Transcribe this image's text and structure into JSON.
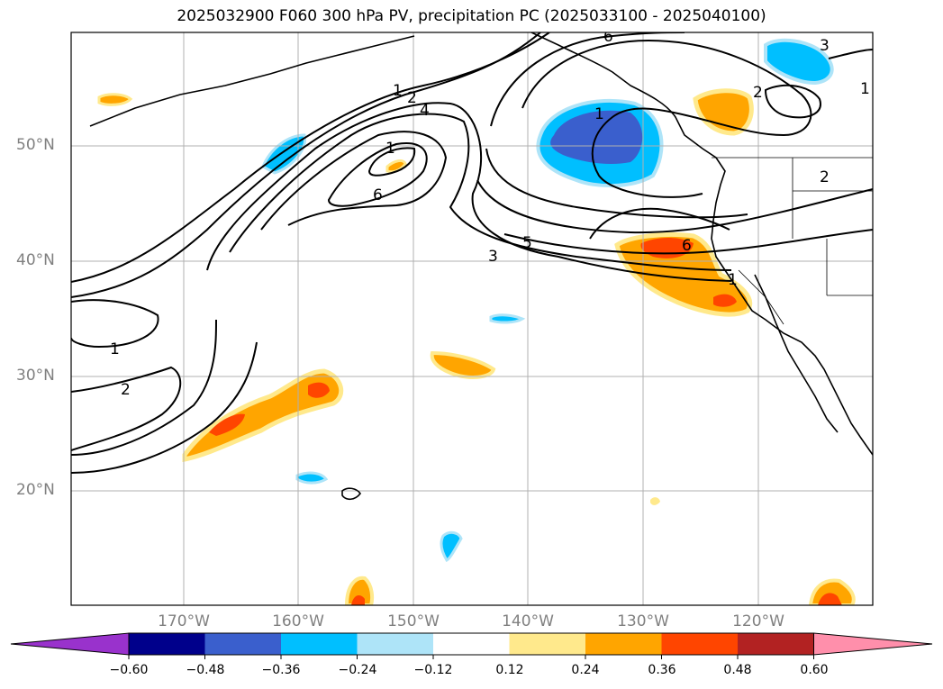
{
  "title": "2025032900 F060 300 hPa PV, precipitation PC (2025033100 - 2025040100)",
  "lat_labels": [
    "50°N",
    "40°N",
    "30°N",
    "20°N"
  ],
  "lon_labels": [
    "170°W",
    "160°W",
    "150°W",
    "140°W",
    "130°W",
    "120°W"
  ],
  "contour_labels": [
    "1",
    "2",
    "4",
    "1",
    "6",
    "6",
    "5",
    "3",
    "1",
    "2",
    "3",
    "1",
    "2",
    "6",
    "1",
    "1",
    "2",
    "3"
  ],
  "colorbar": {
    "ticks": [
      "−0.60",
      "−0.48",
      "−0.36",
      "−0.24",
      "−0.12",
      "0.12",
      "0.24",
      "0.36",
      "0.48",
      "0.60"
    ],
    "colors": [
      "#9932cc",
      "#00008b",
      "#3a5fcd",
      "#00bfff",
      "#aee4f8",
      "#ffffff",
      "#ffe98c",
      "#ffa500",
      "#ff4500",
      "#b22222",
      "#ff8fab"
    ]
  },
  "legend_colors": {
    "neg_strong": "#3a5fcd",
    "neg_mid": "#00bfff",
    "neg_weak": "#aee4f8",
    "pos_weak": "#ffe98c",
    "pos_mid": "#ffa500",
    "pos_strong": "#ff4500"
  }
}
